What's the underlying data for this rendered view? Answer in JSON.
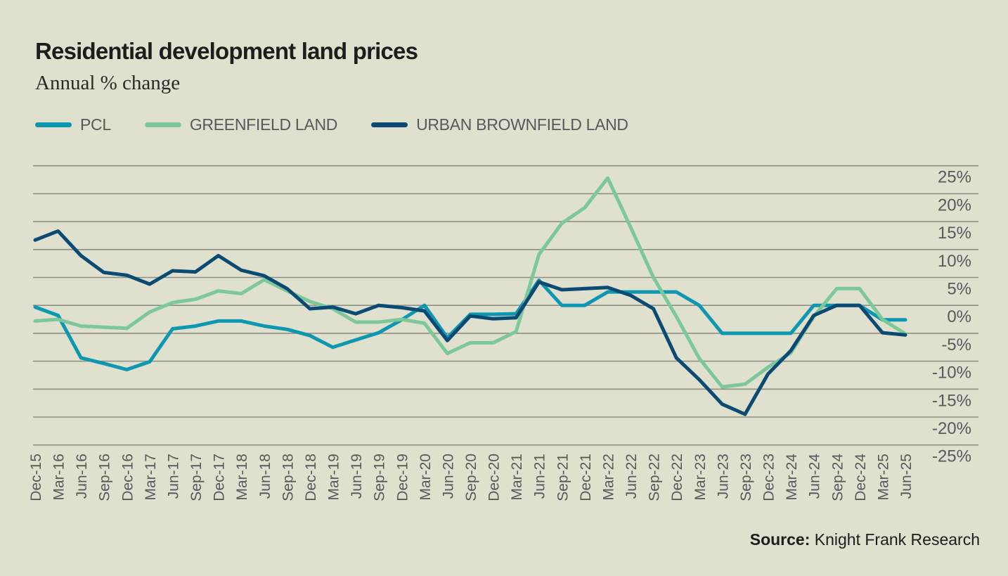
{
  "header": {
    "title": "Residential development land prices",
    "subtitle": "Annual % change"
  },
  "legend": [
    {
      "label": "PCL",
      "color": "#0E97B0"
    },
    {
      "label": "GREENFIELD LAND",
      "color": "#7DC89A"
    },
    {
      "label": "URBAN BROWNFIELD LAND",
      "color": "#0B4B73"
    }
  ],
  "footer": {
    "source_label": "Source:",
    "source_text": " Knight Frank Research"
  },
  "chart_data": {
    "type": "line",
    "title": "Residential development land prices",
    "subtitle": "Annual % change",
    "xlabel": "",
    "ylabel": "",
    "ylim": [
      -25,
      25
    ],
    "yticks": [
      25,
      20,
      15,
      10,
      5,
      0,
      -5,
      -10,
      -15,
      -20,
      -25
    ],
    "ytick_labels": [
      "25%",
      "20%",
      "15%",
      "10%",
      "5%",
      "0%",
      "-5%",
      "-10%",
      "-15%",
      "-20%",
      "-25%"
    ],
    "y_axis_position": "right",
    "grid": true,
    "legend_position": "top-left",
    "x": [
      "Dec-15",
      "Mar-16",
      "Jun-16",
      "Sep-16",
      "Dec-16",
      "Mar-17",
      "Jun-17",
      "Sep-17",
      "Dec-17",
      "Mar-18",
      "Jun-18",
      "Sep-18",
      "Dec-18",
      "Mar-19",
      "Jun-19",
      "Sep-19",
      "Dec-19",
      "Mar-20",
      "Jun-20",
      "Sep-20",
      "Dec-20",
      "Mar-21",
      "Jun-21",
      "Sep-21",
      "Dec-21",
      "Mar-22",
      "Jun-22",
      "Sep-22",
      "Dec-22",
      "Mar-23",
      "Jun-23",
      "Sep-23",
      "Dec-23",
      "Mar-24",
      "Jun-24",
      "Sep-24",
      "Dec-24",
      "Mar-25",
      "Jun-25"
    ],
    "series": [
      {
        "name": "PCL",
        "color": "#0E97B0",
        "values": [
          -0.3,
          -1.8,
          -9.4,
          -10.4,
          -11.5,
          -10.1,
          -4.2,
          -3.7,
          -2.8,
          -2.8,
          -3.7,
          -4.3,
          -5.4,
          -7.5,
          -6.2,
          -4.9,
          -2.6,
          0.0,
          -5.8,
          -1.6,
          -1.6,
          -1.5,
          4.5,
          0.0,
          0.0,
          2.4,
          2.4,
          2.4,
          2.4,
          0.0,
          -5.0,
          -5.0,
          -5.0,
          -5.0,
          0.0,
          0.0,
          0.0,
          -2.6,
          -2.6
        ]
      },
      {
        "name": "GREENFIELD LAND",
        "color": "#7DC89A",
        "values": [
          -2.8,
          -2.5,
          -3.7,
          -3.9,
          -4.1,
          -1.2,
          0.5,
          1.1,
          2.6,
          2.1,
          4.6,
          2.6,
          0.7,
          -0.6,
          -3.0,
          -3.0,
          -2.5,
          -3.2,
          -8.6,
          -6.7,
          -6.7,
          -4.7,
          9.1,
          14.7,
          17.5,
          22.8,
          14.0,
          5.0,
          -2.0,
          -9.5,
          -14.6,
          -14.1,
          -11.1,
          -8.5,
          -2.0,
          3.0,
          3.0,
          -2.5,
          -5.1
        ]
      },
      {
        "name": "URBAN BROWNFIELD LAND",
        "color": "#0B4B73",
        "values": [
          11.7,
          13.3,
          8.9,
          5.9,
          5.4,
          3.8,
          6.2,
          6.0,
          8.9,
          6.3,
          5.3,
          3.0,
          -0.6,
          -0.3,
          -1.5,
          0.0,
          -0.4,
          -1.0,
          -6.3,
          -1.9,
          -2.4,
          -2.2,
          4.2,
          2.8,
          3.0,
          3.2,
          1.8,
          -0.6,
          -9.4,
          -13.3,
          -17.7,
          -19.5,
          -12.3,
          -8.1,
          -1.8,
          0.0,
          0.0,
          -4.9,
          -5.3
        ]
      }
    ]
  }
}
